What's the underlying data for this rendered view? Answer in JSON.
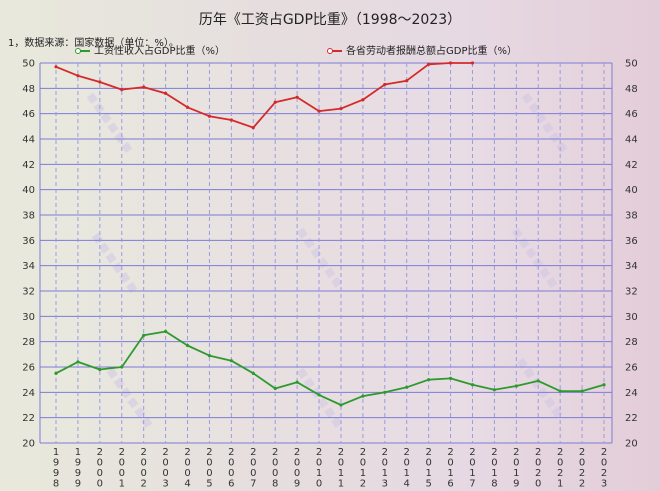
{
  "title": "历年《工资占GDP比重》（1998～2023）",
  "source": "1，数据来源：国家数据（单位：%）。",
  "chart_data": {
    "type": "line",
    "title": "历年《工资占GDP比重》（1998～2023）",
    "xlabel": "",
    "ylabel": "",
    "ylim": [
      20,
      50
    ],
    "yticks": [
      20,
      22,
      24,
      26,
      28,
      30,
      32,
      34,
      36,
      38,
      40,
      42,
      44,
      46,
      48,
      50
    ],
    "right_axis": true,
    "grid": true,
    "legend_position": "top",
    "categories": [
      "1998",
      "1999",
      "2000",
      "2001",
      "2002",
      "2003",
      "2004",
      "2005",
      "2006",
      "2007",
      "2008",
      "2009",
      "2010",
      "2011",
      "2012",
      "2013",
      "2014",
      "2015",
      "2016",
      "2017",
      "2018",
      "2019",
      "2020",
      "2021",
      "2022",
      "2023"
    ],
    "series": [
      {
        "name": "工资性收入占GDP比重（%）",
        "color": "#2e9a2e",
        "values": [
          25.5,
          26.4,
          25.8,
          26.0,
          28.5,
          28.8,
          27.7,
          26.9,
          26.5,
          25.5,
          24.3,
          24.8,
          23.8,
          23.0,
          23.7,
          24.0,
          24.4,
          25.0,
          25.1,
          24.6,
          24.2,
          24.5,
          24.9,
          24.1,
          24.1,
          24.6
        ]
      },
      {
        "name": "各省劳动者报酬总额占GDP比重（%）",
        "color": "#d42a2a",
        "values": [
          49.7,
          49.0,
          48.5,
          47.9,
          48.1,
          47.6,
          46.5,
          45.8,
          45.5,
          44.9,
          46.9,
          47.3,
          46.2,
          46.4,
          47.1,
          48.3,
          48.6,
          49.9,
          50.0,
          50.0,
          null,
          null,
          null,
          null,
          null,
          null
        ]
      }
    ]
  }
}
